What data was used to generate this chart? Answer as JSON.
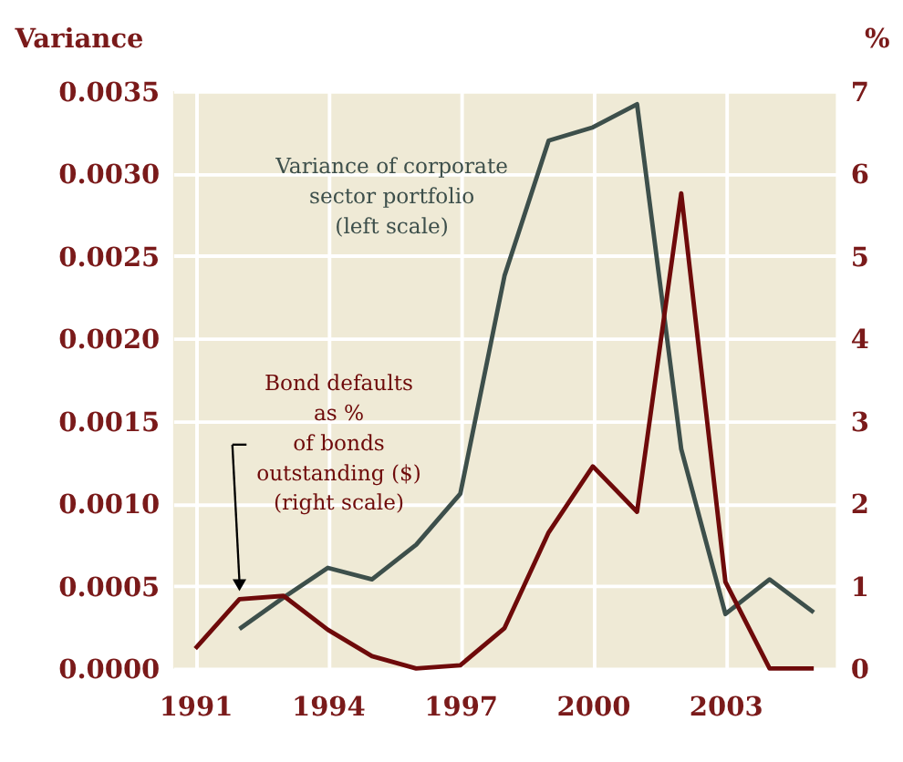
{
  "chart_data": {
    "type": "line",
    "x": [
      1991,
      1992,
      1993,
      1994,
      1995,
      1996,
      1997,
      1998,
      1999,
      2000,
      2001,
      2002,
      2003,
      2004,
      2005
    ],
    "series": [
      {
        "name": "Variance of corporate\nsector portfolio\n(left scale)",
        "color": "#3d4f4b",
        "values": [
          null,
          0.00024,
          0.00043,
          0.00061,
          0.00054,
          0.00075,
          0.00106,
          0.00238,
          0.0032,
          0.00328,
          0.00342,
          0.00133,
          0.00033,
          0.00054,
          0.00034
        ]
      },
      {
        "name": "Bond defaults\nas %\nof bonds\noutstanding ($)\n(right scale)",
        "color": "#6e0a0a",
        "axis": "y2",
        "values": [
          0.24,
          0.84,
          0.88,
          0.47,
          0.15,
          0,
          0.04,
          0.49,
          1.65,
          2.45,
          1.9,
          5.76,
          1.05,
          0,
          0
        ]
      }
    ],
    "ylabel": "Variance",
    "y2label": "%",
    "xlim": [
      1990.5,
      2005.5
    ],
    "xticks": [
      1991,
      1994,
      1997,
      2000,
      2003
    ],
    "ylim": [
      0,
      0.0035
    ],
    "yticks": [
      {
        "value": 0,
        "label": "0.0000"
      },
      {
        "value": 0.0005,
        "label": "0.0005"
      },
      {
        "value": 0.001,
        "label": "0.0010"
      },
      {
        "value": 0.0015,
        "label": "0.0015"
      },
      {
        "value": 0.002,
        "label": "0.0020"
      },
      {
        "value": 0.0025,
        "label": "0.0025"
      },
      {
        "value": 0.003,
        "label": "0.0030"
      },
      {
        "value": 0.0035,
        "label": "0.0035"
      }
    ],
    "y2lim": [
      0,
      7
    ],
    "y2ticks": [
      0,
      1,
      2,
      3,
      4,
      5,
      6,
      7
    ],
    "grid": true,
    "marker": "none",
    "line_style": "solid"
  }
}
